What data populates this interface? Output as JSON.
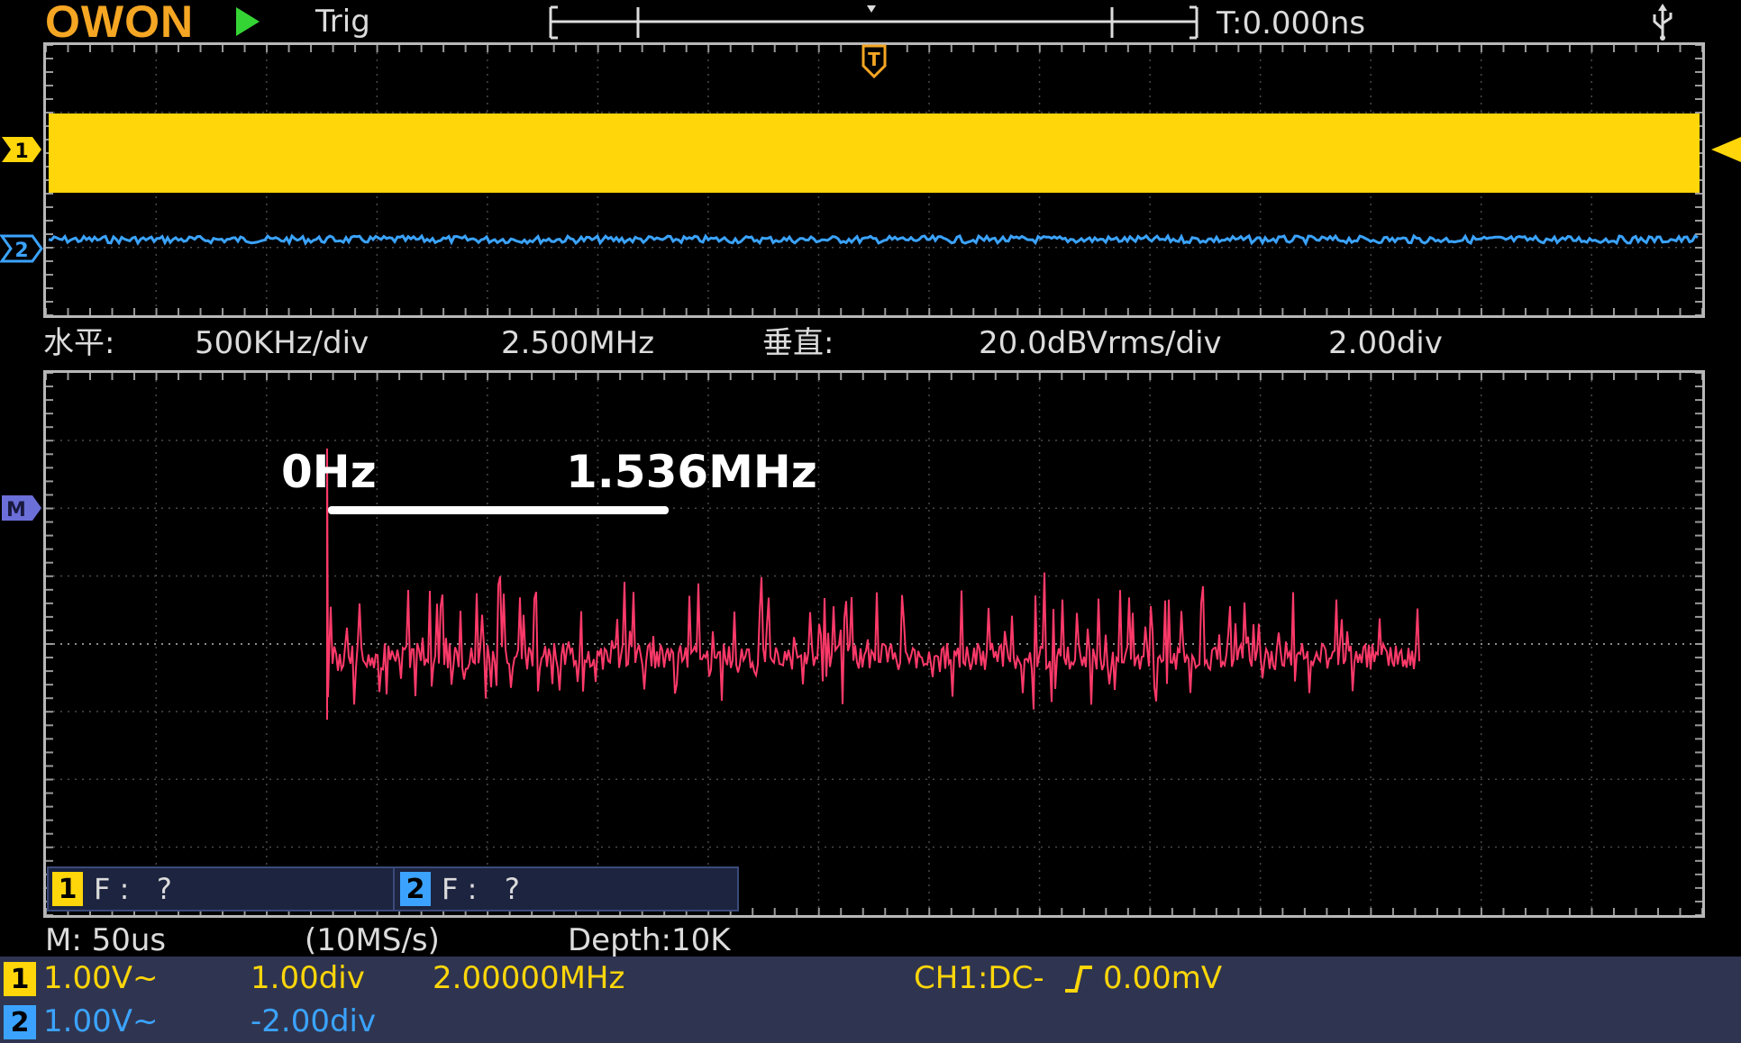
{
  "header": {
    "logo": "OWON",
    "run_state_icon": "play-icon",
    "trigger_mode": "Trig",
    "trigger_delay": "T:0.000ns",
    "usb_icon": "usb-icon",
    "trigger_marker_label": "T"
  },
  "colors": {
    "ch1": "#ffd60a",
    "ch2": "#3ba3ff",
    "math": "#ff3a6a",
    "logo": "#f5a623",
    "run": "#35d435",
    "panel": "#2f3550"
  },
  "markers": {
    "ch1": "1",
    "ch2": "2",
    "math": "M"
  },
  "fft_scale": {
    "h_label": "水平:",
    "h_scale": "500KHz/div",
    "h_center": "2.500MHz",
    "v_label": "垂直:",
    "v_scale": "20.0dBVrms/div",
    "v_offset": "2.00div"
  },
  "cursors": {
    "a_value": "0Hz",
    "b_value": "1.536MHz"
  },
  "freq_counter": {
    "ch1_num": "1",
    "ch1_text": "F :   ?",
    "ch2_num": "2",
    "ch2_text": "F :   ?"
  },
  "timebase": {
    "scale": "M: 50us",
    "sample_rate": "(10MS/s)",
    "depth": "Depth:10K"
  },
  "channels": [
    {
      "num": "1",
      "volts": "1.00V~",
      "offset": "1.00div",
      "freq": "2.00000MHz"
    },
    {
      "num": "2",
      "volts": "1.00V~",
      "offset": "-2.00div",
      "freq": ""
    }
  ],
  "trigger": {
    "source": "CH1:DC-",
    "edge_icon": "rising-edge-icon",
    "level": "0.00mV"
  }
}
